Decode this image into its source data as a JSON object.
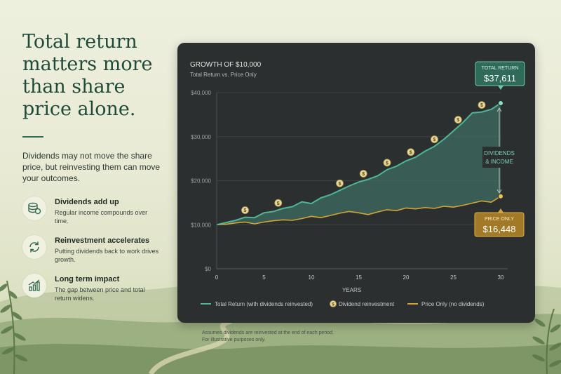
{
  "headline": "Total return matters more than share price alone.",
  "intro": "Dividends may not move the share price, but reinvesting them can move your outcomes.",
  "features": [
    {
      "icon": "coins-icon",
      "title": "Dividends add up",
      "desc": "Regular income compounds over time."
    },
    {
      "icon": "refresh-arrows-icon",
      "title": "Reinvestment accelerates",
      "desc": "Putting dividends back to work drives growth."
    },
    {
      "icon": "bar-growth-icon",
      "title": "Long term impact",
      "desc": "The gap between price and total return widens."
    }
  ],
  "footnote": [
    "Assumes dividends are reinvested at the end of each period.",
    "For illustrative purposes only."
  ],
  "colors": {
    "teal": "#4fb596",
    "gold": "#d3a43a",
    "card": "#2b2f2f",
    "headline": "#1f4a39"
  },
  "chart_data": {
    "type": "line",
    "title": "GROWTH OF $10,000",
    "subtitle": "Total Return vs. Price Only",
    "xlabel": "YEARS",
    "ylabel": "",
    "xlim": [
      0,
      30
    ],
    "ylim": [
      0,
      40000
    ],
    "x_ticks": [
      0,
      5,
      10,
      15,
      20,
      25,
      30
    ],
    "y_ticks": [
      0,
      10000,
      20000,
      30000,
      40000
    ],
    "y_tick_labels": [
      "$0",
      "$10,000",
      "$20,000",
      "$30,000",
      "$40,000"
    ],
    "grid": true,
    "legend_position": "bottom",
    "series": [
      {
        "name": "Total Return (with dividends reinvested)",
        "color": "#4fb596",
        "x": [
          0,
          1,
          2,
          3,
          4,
          5,
          6,
          7,
          8,
          9,
          10,
          11,
          12,
          13,
          14,
          15,
          16,
          17,
          18,
          19,
          20,
          21,
          22,
          23,
          24,
          25,
          26,
          27,
          28,
          29,
          30
        ],
        "values": [
          10000,
          10500,
          11000,
          11700,
          11600,
          12700,
          13000,
          13700,
          14100,
          15200,
          14800,
          16100,
          16800,
          17800,
          18800,
          19700,
          20300,
          21100,
          22500,
          23300,
          24500,
          25300,
          26700,
          27800,
          29400,
          31300,
          33200,
          35400,
          35600,
          36200,
          37611
        ]
      },
      {
        "name": "Price Only (no dividends)",
        "color": "#d3a43a",
        "x": [
          0,
          1,
          2,
          3,
          4,
          5,
          6,
          7,
          8,
          9,
          10,
          11,
          12,
          13,
          14,
          15,
          16,
          17,
          18,
          19,
          20,
          21,
          22,
          23,
          24,
          25,
          26,
          27,
          28,
          29,
          30
        ],
        "values": [
          10000,
          10100,
          10400,
          10600,
          10200,
          10600,
          10900,
          11100,
          11000,
          11400,
          11900,
          11600,
          12100,
          12600,
          13000,
          12700,
          12300,
          12900,
          13400,
          13200,
          13800,
          13600,
          13900,
          13700,
          14200,
          14000,
          14400,
          14900,
          15400,
          15100,
          16448
        ]
      }
    ],
    "dividend_markers": {
      "name": "Dividend reinvestment",
      "symbol": "$",
      "x": [
        3,
        6.5,
        13,
        15.5,
        18,
        20.5,
        23,
        25.5,
        28
      ]
    },
    "callouts": {
      "total": {
        "label": "TOTAL RETURN",
        "value": "$37,611"
      },
      "price": {
        "label": "PRICE ONLY",
        "value": "$16,448"
      },
      "gap": [
        "DIVIDENDS",
        "& INCOME"
      ]
    }
  }
}
